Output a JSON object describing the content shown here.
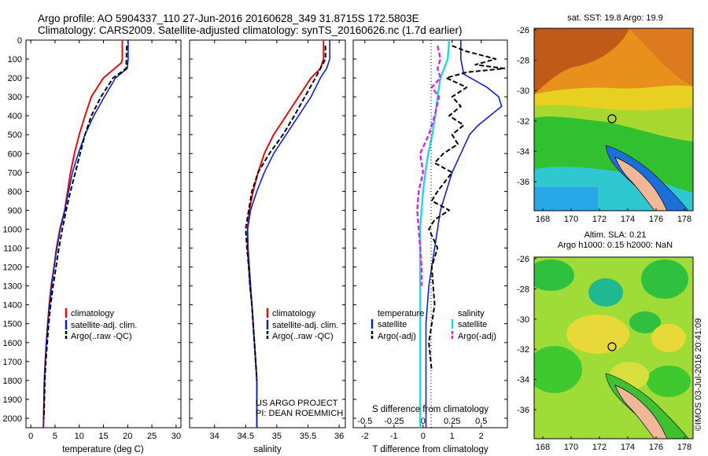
{
  "header": {
    "line1": "Argo profile: AO 5904337_110 27-Jun-2016 20160628_349 31.8715S 172.5803E",
    "line2": "Climatology: CARS2009. Satellite-adjusted climatology: synTS_20160626.nc (1.7d earlier)"
  },
  "colors": {
    "climatology": "#e01010",
    "satellite": "#1020d0",
    "argo": "#000000",
    "cyan": "#22d8e0",
    "magenta": "#e020e0"
  },
  "depth_axis": {
    "ylim": [
      0,
      2050
    ],
    "ticks": [
      "0",
      "100",
      "200",
      "300",
      "400",
      "500",
      "600",
      "700",
      "800",
      "900",
      "1000",
      "1100",
      "1200",
      "1300",
      "1400",
      "1500",
      "1600",
      "1700",
      "1800",
      "1900",
      "2000"
    ]
  },
  "chart_data": [
    {
      "type": "line",
      "xlabel": "temperature (deg C)",
      "xlim": [
        -1,
        31
      ],
      "xticks": [
        "0",
        "5",
        "10",
        "15",
        "20",
        "25",
        "30"
      ],
      "legend": [
        "climatology",
        "satellite-adj. clim.",
        "Argo(..raw -QC)"
      ],
      "series": [
        {
          "name": "climatology",
          "x": [
            18.9,
            18.9,
            18.7,
            15,
            12.5,
            11.2,
            10,
            9,
            8.2,
            7.6,
            7,
            6,
            5.3,
            4.8,
            4.2,
            3.8,
            3.5,
            3.2,
            3,
            2.8,
            2.6
          ],
          "depth": [
            0,
            100,
            120,
            200,
            300,
            400,
            500,
            600,
            700,
            800,
            900,
            1000,
            1100,
            1200,
            1300,
            1400,
            1500,
            1600,
            1700,
            1800,
            2050
          ]
        },
        {
          "name": "satellite-adj. clim.",
          "x": [
            20.1,
            20.1,
            19.9,
            17.5,
            15.2,
            13,
            11.2,
            9.8,
            8.6,
            7.8,
            7,
            6.1,
            5.4,
            4.8,
            4.3,
            3.9,
            3.5,
            3.2,
            3,
            2.8,
            2.6
          ],
          "depth": [
            0,
            100,
            150,
            200,
            300,
            400,
            500,
            600,
            700,
            800,
            900,
            1000,
            1100,
            1200,
            1300,
            1400,
            1500,
            1600,
            1700,
            1800,
            2050
          ]
        },
        {
          "name": "Argo(..raw -QC)",
          "x": [
            19.8,
            19.7,
            17,
            14.5,
            12.5,
            11.2,
            10.2,
            9.2,
            8.2,
            7.3,
            6.5,
            5.8,
            5.2,
            4.6,
            4.1,
            3.7,
            3.4,
            3.1,
            2.9,
            2.7
          ],
          "depth": [
            30,
            150,
            200,
            300,
            400,
            500,
            600,
            700,
            800,
            900,
            1000,
            1100,
            1200,
            1300,
            1400,
            1500,
            1600,
            1700,
            1800,
            2000
          ]
        }
      ]
    },
    {
      "type": "line",
      "xlabel": "salinity",
      "xlim": [
        33.6,
        36.1
      ],
      "xticks": [
        "34",
        "34.5",
        "35",
        "35.5",
        "36"
      ],
      "legend": [
        "climatology",
        "satellite-adj. clim.",
        "Argo(..raw -QC)"
      ],
      "annotation": [
        "US ARGO PROJECT",
        "PI: DEAN ROEMMICH"
      ],
      "series": [
        {
          "name": "climatology",
          "x": [
            35.75,
            35.75,
            35.7,
            35.55,
            35.35,
            35.15,
            34.95,
            34.8,
            34.7,
            34.62,
            34.56,
            34.53,
            34.53,
            34.55,
            34.57,
            34.6,
            34.62,
            34.64,
            34.66,
            34.68,
            34.68
          ],
          "depth": [
            0,
            100,
            150,
            200,
            300,
            400,
            500,
            600,
            700,
            800,
            900,
            1000,
            1100,
            1200,
            1300,
            1400,
            1500,
            1600,
            1700,
            1800,
            2050
          ]
        },
        {
          "name": "satellite-adj. clim.",
          "x": [
            35.85,
            35.85,
            35.8,
            35.7,
            35.55,
            35.35,
            35.15,
            34.95,
            34.8,
            34.68,
            34.58,
            34.53,
            34.54,
            34.56,
            34.58,
            34.6,
            34.62,
            34.64,
            34.66,
            34.68,
            34.68
          ],
          "depth": [
            0,
            100,
            150,
            200,
            300,
            400,
            500,
            600,
            700,
            800,
            900,
            1000,
            1100,
            1200,
            1300,
            1400,
            1500,
            1600,
            1700,
            1800,
            2050
          ]
        },
        {
          "name": "Argo(..raw -QC)",
          "x": [
            35.78,
            35.78,
            35.7,
            35.62,
            35.45,
            35.28,
            35.1,
            34.88,
            34.7,
            34.6,
            34.55,
            34.5,
            34.52,
            34.55,
            34.57,
            34.6,
            34.62,
            34.64,
            34.66,
            34.68
          ],
          "depth": [
            30,
            100,
            150,
            200,
            300,
            400,
            500,
            600,
            700,
            800,
            900,
            1000,
            1100,
            1200,
            1300,
            1400,
            1500,
            1600,
            1700,
            1800
          ]
        }
      ]
    },
    {
      "type": "line",
      "xlabel": "T difference from climatology",
      "xlabel_top": "S difference from climatology",
      "xlim": [
        -2.4,
        2.9
      ],
      "xticks": [
        "-2",
        "-1",
        "0",
        "1",
        "2"
      ],
      "xticks_top": [
        "-0.5",
        "-0.25",
        "0",
        "0.25",
        "0.5"
      ],
      "legend_left": {
        "title": "temperature",
        "items": [
          "satellite",
          "Argo(-adj)"
        ]
      },
      "legend_right": {
        "title": "salinity",
        "items": [
          "satellite",
          "Argo(-adj)"
        ]
      },
      "series": [
        {
          "name": "satellite",
          "x": [
            1.3,
            1.3,
            1.4,
            2.2,
            2.6,
            2.7,
            2.3,
            1.9,
            1.6,
            1.3,
            1.0,
            0.8,
            0.6,
            0.5,
            0.4,
            0.3,
            0.2,
            0.15,
            0.1,
            0.1
          ],
          "depth": [
            0,
            100,
            180,
            250,
            300,
            350,
            400,
            450,
            500,
            600,
            700,
            800,
            900,
            1000,
            1100,
            1200,
            1300,
            1400,
            1500,
            2050
          ]
        },
        {
          "name": "Argo(-adj)",
          "x": [
            1.0,
            1.5,
            2.5,
            1.8,
            2.8,
            1.5,
            0.8,
            1.5,
            1.0,
            1.3,
            0.9,
            1.4,
            1.0,
            1.2,
            0.7,
            0.4,
            1.0,
            0.5,
            0.3,
            0.9,
            0.4,
            0.2,
            0.5,
            0.3,
            0.4,
            0.2,
            0.3
          ],
          "depth": [
            30,
            60,
            100,
            130,
            150,
            170,
            200,
            250,
            300,
            350,
            400,
            450,
            500,
            550,
            600,
            650,
            700,
            800,
            850,
            900,
            950,
            1000,
            1100,
            1200,
            1400,
            1600,
            1750
          ]
        },
        {
          "name": "satellite (salinity)",
          "x": [
            0.9,
            0.85,
            0.6,
            0.5,
            0.42,
            0.32,
            0.18,
            0.08,
            0.0,
            -0.05,
            -0.1,
            -0.1,
            -0.1,
            -0.1,
            -0.1
          ],
          "depth": [
            0,
            100,
            200,
            300,
            400,
            500,
            600,
            700,
            800,
            900,
            1000,
            1200,
            1500,
            1800,
            2050
          ]
        },
        {
          "name": "Argo(-adj) (salinity)",
          "x": [
            0.5,
            0.6,
            0.5,
            0.6,
            0.3,
            0.55,
            0.4,
            0.2,
            -0.1,
            0.0,
            -0.15,
            -0.2,
            -0.15,
            -0.1,
            -0.05,
            -0.05
          ],
          "depth": [
            30,
            100,
            150,
            200,
            250,
            300,
            400,
            500,
            600,
            700,
            800,
            900,
            1000,
            1100,
            1200,
            1300
          ]
        }
      ]
    },
    {
      "type": "heatmap",
      "title": "sat. SST: 19.8  Argo: 19.9",
      "xticks": [
        "168",
        "170",
        "172",
        "174",
        "176",
        "178"
      ],
      "yticks": [
        "-26",
        "-28",
        "-30",
        "-32",
        "-34",
        "-36"
      ]
    },
    {
      "type": "heatmap",
      "title_line1": "Altim. SLA: 0.21",
      "title_line2": "Argo h1000: 0.15 h2000: NaN",
      "xticks": [
        "168",
        "170",
        "172",
        "174",
        "176",
        "178"
      ],
      "yticks": [
        "-26",
        "-28",
        "-30",
        "-32",
        "-34",
        "-36"
      ]
    }
  ],
  "footer": {
    "copyright": "©IMOS 03-Jul-2016 20:41:09"
  }
}
